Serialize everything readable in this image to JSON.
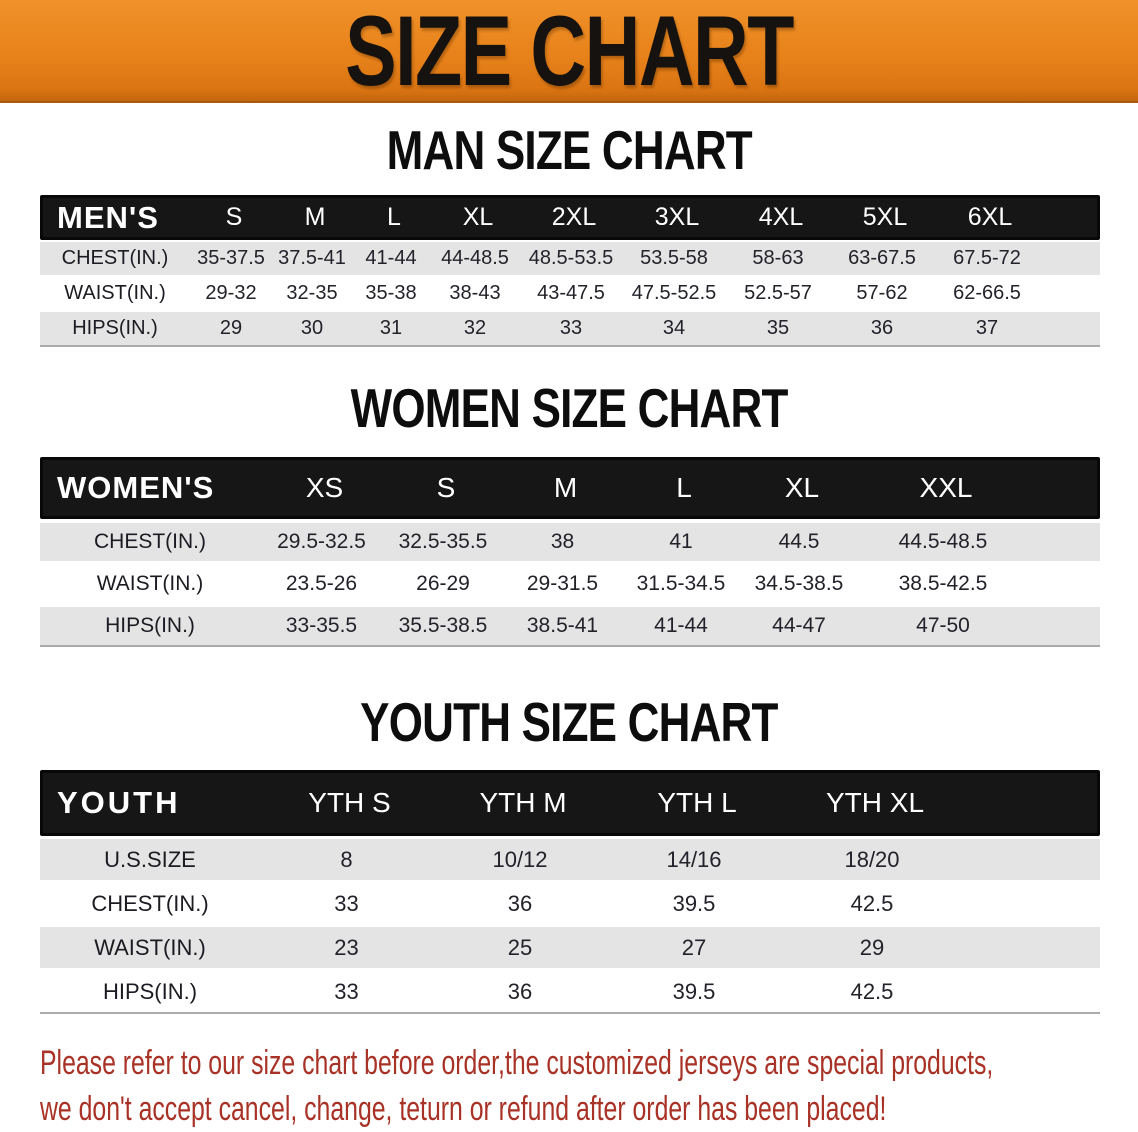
{
  "banner": {
    "title": "SIZE CHART"
  },
  "sections": [
    {
      "heading": "MAN SIZE CHART",
      "table": {
        "header_label": "MEN'S",
        "sizes": [
          "S",
          "M",
          "L",
          "XL",
          "2XL",
          "3XL",
          "4XL",
          "5XL",
          "6XL"
        ],
        "rows": [
          {
            "label": "CHEST(IN.)",
            "values": [
              "35-37.5",
              "37.5-41",
              "41-44",
              "44-48.5",
              "48.5-53.5",
              "53.5-58",
              "58-63",
              "63-67.5",
              "67.5-72"
            ]
          },
          {
            "label": "WAIST(IN.)",
            "values": [
              "29-32",
              "32-35",
              "35-38",
              "38-43",
              "43-47.5",
              "47.5-52.5",
              "52.5-57",
              "57-62",
              "62-66.5"
            ]
          },
          {
            "label": "HIPS(IN.)",
            "values": [
              "29",
              "30",
              "31",
              "32",
              "33",
              "34",
              "35",
              "36",
              "37"
            ]
          }
        ]
      }
    },
    {
      "heading": "WOMEN SIZE CHART",
      "table": {
        "header_label": "WOMEN'S",
        "sizes": [
          "XS",
          "S",
          "M",
          "L",
          "XL",
          "XXL"
        ],
        "rows": [
          {
            "label": "CHEST(IN.)",
            "values": [
              "29.5-32.5",
              "32.5-35.5",
              "38",
              "41",
              "44.5",
              "44.5-48.5"
            ]
          },
          {
            "label": "WAIST(IN.)",
            "values": [
              "23.5-26",
              "26-29",
              "29-31.5",
              "31.5-34.5",
              "34.5-38.5",
              "38.5-42.5"
            ]
          },
          {
            "label": "HIPS(IN.)",
            "values": [
              "33-35.5",
              "35.5-38.5",
              "38.5-41",
              "41-44",
              "44-47",
              "47-50"
            ]
          }
        ]
      }
    },
    {
      "heading": "YOUTH SIZE CHART",
      "table": {
        "header_label": "YOUTH",
        "sizes": [
          "YTH S",
          "YTH M",
          "YTH L",
          "YTH XL"
        ],
        "rows": [
          {
            "label": "U.S.SIZE",
            "values": [
              "8",
              "10/12",
              "14/16",
              "18/20"
            ]
          },
          {
            "label": "CHEST(IN.)",
            "values": [
              "33",
              "36",
              "39.5",
              "42.5"
            ]
          },
          {
            "label": "WAIST(IN.)",
            "values": [
              "23",
              "25",
              "27",
              "29"
            ]
          },
          {
            "label": "HIPS(IN.)",
            "values": [
              "33",
              "36",
              "39.5",
              "42.5"
            ]
          }
        ]
      }
    }
  ],
  "disclaimer": {
    "line1": "Please refer to our size chart before order,the customized jerseys are special products,",
    "line2": "we don't accept cancel, change, teturn or refund after order has been placed!"
  },
  "colors": {
    "banner_orange": "#E8821A",
    "header_bar_black": "#161616",
    "row_gray": "#E4E4E4",
    "disclaimer_red": "#A93226"
  }
}
